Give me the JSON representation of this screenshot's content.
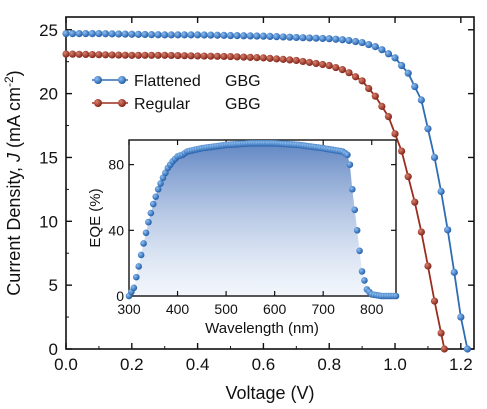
{
  "chart_data": [
    {
      "type": "line",
      "xlabel": "Voltage (V)",
      "ylabel_parts": {
        "prefix": "Current Density, ",
        "var": "J",
        "unit_open": " (mA cm",
        "sup": "-2",
        "unit_close": ")"
      },
      "xlim": [
        0.0,
        1.24
      ],
      "ylim": [
        0,
        26
      ],
      "xticks": [
        0.0,
        0.2,
        0.4,
        0.6,
        0.8,
        1.0,
        1.2
      ],
      "xtick_labels": [
        "0.0",
        "0.2",
        "0.4",
        "0.6",
        "0.8",
        "1.0",
        "1.2"
      ],
      "yticks": [
        0,
        5,
        10,
        15,
        20,
        25
      ],
      "ytick_labels": [
        "0",
        "5",
        "10",
        "15",
        "20",
        "25"
      ],
      "legend_position": "upper-left",
      "series": [
        {
          "name": "Flattened",
          "name_suffix": "GBG",
          "color": "#2e6db4",
          "jsc": 24.7,
          "voc": 1.22,
          "x": [
            0.0,
            0.1,
            0.2,
            0.3,
            0.4,
            0.5,
            0.6,
            0.7,
            0.8,
            0.85,
            0.9,
            0.95,
            1.0,
            1.04,
            1.08,
            1.12,
            1.15,
            1.18,
            1.2,
            1.22
          ],
          "y": [
            24.7,
            24.7,
            24.65,
            24.6,
            24.6,
            24.55,
            24.5,
            24.4,
            24.3,
            24.2,
            24.0,
            23.6,
            22.8,
            21.6,
            19.5,
            15.0,
            11.0,
            6.0,
            2.5,
            0.0
          ]
        },
        {
          "name": "Regular",
          "name_suffix": "GBG",
          "color": "#9b2d1f",
          "jsc": 23.1,
          "voc": 1.15,
          "x": [
            0.0,
            0.1,
            0.2,
            0.3,
            0.4,
            0.5,
            0.6,
            0.7,
            0.8,
            0.85,
            0.9,
            0.94,
            0.98,
            1.02,
            1.06,
            1.09,
            1.11,
            1.13,
            1.15
          ],
          "y": [
            23.1,
            23.05,
            23.0,
            23.0,
            22.95,
            22.9,
            22.8,
            22.6,
            22.2,
            21.8,
            21.0,
            19.8,
            18.2,
            15.5,
            11.5,
            8.0,
            5.0,
            2.5,
            0.0
          ]
        }
      ]
    },
    {
      "type": "scatter",
      "xlabel": "Wavelength (nm)",
      "ylabel": "EQE (%)",
      "xlim": [
        300,
        850
      ],
      "ylim": [
        0,
        95
      ],
      "xticks": [
        300,
        400,
        500,
        600,
        700,
        800
      ],
      "xtick_labels": [
        "300",
        "400",
        "500",
        "600",
        "700",
        "800"
      ],
      "yticks": [
        0,
        40,
        80
      ],
      "ytick_labels": [
        "0",
        "40",
        "80"
      ],
      "color": "#2e6db4",
      "fill": "area-gradient",
      "x": [
        300,
        310,
        320,
        330,
        340,
        350,
        360,
        370,
        380,
        390,
        400,
        410,
        420,
        450,
        500,
        550,
        600,
        650,
        700,
        720,
        740,
        750,
        755,
        760,
        770,
        780,
        790,
        800,
        820,
        850
      ],
      "y": [
        0,
        5,
        18,
        32,
        45,
        56,
        65,
        72,
        78,
        82,
        85,
        86,
        88,
        90,
        92,
        93,
        93,
        92,
        90,
        89,
        88,
        86,
        80,
        65,
        40,
        15,
        4,
        1,
        0,
        0
      ]
    }
  ]
}
